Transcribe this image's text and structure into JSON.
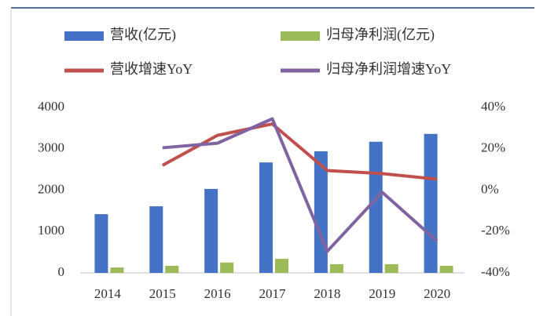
{
  "chart_data": {
    "type": "bar_line",
    "categories": [
      "2014",
      "2015",
      "2016",
      "2017",
      "2018",
      "2019",
      "2020"
    ],
    "series": [
      {
        "name": "营收(亿元)",
        "type": "bar",
        "color": "#4472c4",
        "values": [
          1420,
          1610,
          2030,
          2670,
          2940,
          3170,
          3360
        ]
      },
      {
        "name": "归母净利润(亿元)",
        "type": "bar",
        "color": "#9bbb59",
        "values": [
          130,
          170,
          250,
          340,
          210,
          210,
          170
        ]
      },
      {
        "name": "营收增速YoY",
        "type": "line",
        "axis": "y2",
        "color": "#c0504d",
        "values": [
          null,
          12,
          26.5,
          32,
          9.5,
          8,
          5.3
        ]
      },
      {
        "name": "归母净利润增速YoY",
        "type": "line",
        "axis": "y2",
        "color": "#8064a2",
        "values": [
          null,
          20.5,
          22.7,
          34.5,
          -29.6,
          -1,
          -24.6
        ]
      }
    ],
    "ylim": [
      0,
      4000
    ],
    "yticks": [
      0,
      1000,
      2000,
      3000,
      4000
    ],
    "y2lim": [
      -40,
      40
    ],
    "y2ticks": [
      {
        "value": -40,
        "label": "-40%"
      },
      {
        "value": -20,
        "label": "-20%"
      },
      {
        "value": 0,
        "label": "0%"
      },
      {
        "value": 20,
        "label": "20%"
      },
      {
        "value": 40,
        "label": "40%"
      }
    ],
    "legend": "top"
  }
}
